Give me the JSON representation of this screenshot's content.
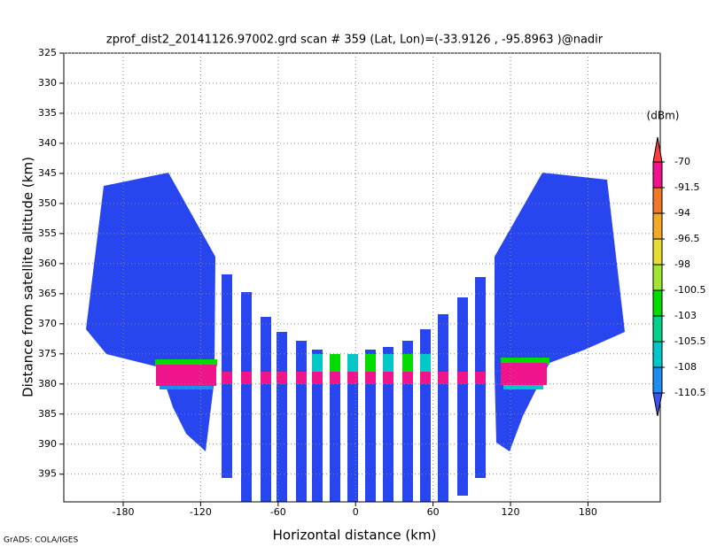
{
  "chart_data": {
    "type": "heatmap",
    "title": "zprof_dist2_20141126.97002.grd  scan # 359  (Lat, Lon)=(-33.9126 , -95.8963 )@nadir",
    "xlabel": "Horizontal distance (km)",
    "ylabel": "Distance from satellite altitude (km)",
    "xlim": [
      -226,
      236
    ],
    "xticks": [
      -180,
      -120,
      -60,
      0,
      60,
      120,
      180
    ],
    "ylim": [
      325,
      399.6
    ],
    "yticks": [
      325,
      330,
      335,
      340,
      345,
      350,
      355,
      360,
      365,
      370,
      375,
      380,
      385,
      390,
      395
    ],
    "y_inverted": true,
    "grid": true,
    "colorbar": {
      "label": "(dBm)",
      "levels": [
        -110.5,
        -108,
        -105.5,
        -103,
        -100.5,
        -98,
        -96.5,
        -94,
        -91.5,
        -70
      ],
      "colors": [
        "#3c50f0",
        "#1e8cf0",
        "#00c8c8",
        "#00d28c",
        "#00dc00",
        "#a0e632",
        "#e6dc32",
        "#f0aa28",
        "#f07828",
        "#f0148c",
        "#fa3c3c"
      ]
    },
    "footer": "GrADS: COLA/IGES"
  }
}
